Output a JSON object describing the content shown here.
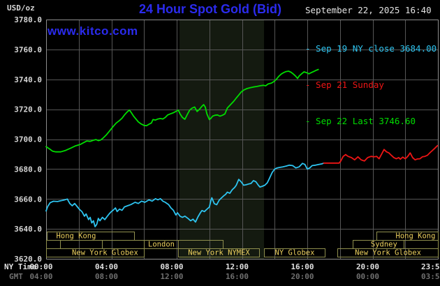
{
  "header": {
    "unit_label": "USD/oz",
    "title": "24 Hour Spot Gold (Bid)",
    "datetime": "September 22, 2025 16:40",
    "watermark": "www.kitco.com",
    "colors": {
      "accent_blue": "#2b2bee"
    }
  },
  "legend": [
    {
      "label": "- Sep 19 NY close 3684.00",
      "color": "#2ec4f0"
    },
    {
      "label": "- Sep 21 Sunday",
      "color": "#ee1515"
    },
    {
      "label": "- Sep 22 Last 3746.60",
      "color": "#00dd00"
    }
  ],
  "axes": {
    "ny_time_label": "NY Time",
    "gmt_label": "GMT",
    "x_min_hour": 0,
    "x_max_hour": 24,
    "x_tick_hours": [
      0,
      4,
      8,
      12,
      16,
      20,
      23.983
    ],
    "ny_time_ticks": [
      "00:00",
      "04:00",
      "08:00",
      "12:00",
      "16:00",
      "20:00",
      "23:59"
    ],
    "gmt_ticks": [
      "04:00",
      "08:00",
      "12:00",
      "16:00",
      "20:00",
      "00:00",
      "03:59"
    ],
    "y_min": 3620,
    "y_max": 3780,
    "y_tick_step": 20,
    "y_ticks": [
      3780,
      3760,
      3740,
      3720,
      3700,
      3680,
      3660,
      3640,
      3620
    ]
  },
  "sessions_style": {
    "border": "#8f8f4e",
    "text": "#ecd05e"
  },
  "sessions": [
    {
      "row": 0,
      "from_hour": 0.05,
      "to_hour": 5.4,
      "label": "Hong Kong",
      "label_hour": 1.84
    },
    {
      "row": 0,
      "from_hour": 20.24,
      "to_hour": 24,
      "label": "Hong Kong",
      "label_hour": 22.63
    },
    {
      "row": 1,
      "from_hour": 0,
      "to_hour": 0.86,
      "label": ""
    },
    {
      "row": 1,
      "from_hour": 0.86,
      "to_hour": 3.42,
      "label": ""
    },
    {
      "row": 1,
      "from_hour": 3.42,
      "to_hour": 5.99,
      "label": ""
    },
    {
      "row": 1,
      "from_hour": 5.99,
      "to_hour": 8.08,
      "label": "London"
    },
    {
      "row": 1,
      "from_hour": 8.08,
      "to_hour": 10.82,
      "label": ""
    },
    {
      "row": 1,
      "from_hour": 18.78,
      "to_hour": 21.9,
      "label": "Sydney",
      "label_hour": 20.7
    },
    {
      "row": 1,
      "from_hour": 21.9,
      "to_hour": 24,
      "label": ""
    },
    {
      "row": 2,
      "from_hour": 0,
      "to_hour": 5.99,
      "label": "New York Globex",
      "label_hour": 3.61
    },
    {
      "row": 2,
      "from_hour": 8.08,
      "to_hour": 13.05,
      "label": "New York NYMEX"
    },
    {
      "row": 2,
      "from_hour": 13.35,
      "to_hour": 17.07,
      "label": "NY Globex"
    },
    {
      "row": 2,
      "from_hour": 17.84,
      "to_hour": 24,
      "label": "New York Globex"
    }
  ],
  "chart_data": {
    "type": "line",
    "title": "24 Hour Spot Gold (Bid)",
    "x_axis": {
      "unit": "time of day",
      "rows": [
        "NY Time",
        "GMT"
      ],
      "range_hours": [
        0,
        24
      ]
    },
    "y_axis": {
      "unit": "USD/oz",
      "min": 3620,
      "max": 3780,
      "tick_step": 20
    },
    "grid": {
      "x_step_hours": 2,
      "y_step": 20
    },
    "legend_position": "top-right",
    "highlight_band": {
      "from_hour": 8.17,
      "to_hour": 13.35,
      "color": "#141a10"
    },
    "series": [
      {
        "key": "sep19",
        "name": "Sep 19 NY close",
        "close": 3684.0,
        "color": "#2ec4f0",
        "points": [
          [
            0,
            3652
          ],
          [
            0.1,
            3655
          ],
          [
            0.25,
            3657.5
          ],
          [
            0.45,
            3658.5
          ],
          [
            0.7,
            3658.3
          ],
          [
            0.9,
            3658.8
          ],
          [
            1.1,
            3659.3
          ],
          [
            1.3,
            3660
          ],
          [
            1.45,
            3657
          ],
          [
            1.6,
            3655.5
          ],
          [
            1.75,
            3657
          ],
          [
            1.9,
            3655
          ],
          [
            2.05,
            3653
          ],
          [
            2.2,
            3651.5
          ],
          [
            2.35,
            3648.5
          ],
          [
            2.45,
            3650
          ],
          [
            2.6,
            3646.2
          ],
          [
            2.7,
            3647.7
          ],
          [
            2.8,
            3644
          ],
          [
            2.9,
            3645.4
          ],
          [
            3,
            3641.5
          ],
          [
            3.1,
            3643
          ],
          [
            3.2,
            3647
          ],
          [
            3.3,
            3645.4
          ],
          [
            3.45,
            3647.7
          ],
          [
            3.6,
            3646.2
          ],
          [
            3.75,
            3648.5
          ],
          [
            3.9,
            3650.5
          ],
          [
            4,
            3651.6
          ],
          [
            4.1,
            3652.4
          ],
          [
            4.25,
            3654
          ],
          [
            4.35,
            3651.6
          ],
          [
            4.5,
            3653.2
          ],
          [
            4.65,
            3652.4
          ],
          [
            4.8,
            3654.7
          ],
          [
            5,
            3655.5
          ],
          [
            5.2,
            3656.3
          ],
          [
            5.45,
            3657.8
          ],
          [
            5.65,
            3657
          ],
          [
            5.85,
            3658.6
          ],
          [
            6.05,
            3657.8
          ],
          [
            6.3,
            3659.4
          ],
          [
            6.5,
            3658.6
          ],
          [
            6.7,
            3660.2
          ],
          [
            6.85,
            3659.4
          ],
          [
            7,
            3660.2
          ],
          [
            7.15,
            3658.6
          ],
          [
            7.3,
            3657.8
          ],
          [
            7.5,
            3656.3
          ],
          [
            7.65,
            3654
          ],
          [
            7.8,
            3652.4
          ],
          [
            7.95,
            3649.3
          ],
          [
            8.05,
            3650.8
          ],
          [
            8.2,
            3648.5
          ],
          [
            8.35,
            3647.7
          ],
          [
            8.5,
            3648.5
          ],
          [
            8.7,
            3646.9
          ],
          [
            8.85,
            3645.4
          ],
          [
            9,
            3646.5
          ],
          [
            9.15,
            3644.6
          ],
          [
            9.3,
            3648
          ],
          [
            9.45,
            3650.8
          ],
          [
            9.55,
            3652.3
          ],
          [
            9.7,
            3651.6
          ],
          [
            9.85,
            3653.1
          ],
          [
            10,
            3654.6
          ],
          [
            10.1,
            3659.2
          ],
          [
            10.15,
            3660.8
          ],
          [
            10.3,
            3656.9
          ],
          [
            10.45,
            3656.2
          ],
          [
            10.6,
            3659.2
          ],
          [
            10.75,
            3660.8
          ],
          [
            10.9,
            3662.3
          ],
          [
            11,
            3663.1
          ],
          [
            11.1,
            3664.6
          ],
          [
            11.25,
            3663.8
          ],
          [
            11.4,
            3666.2
          ],
          [
            11.55,
            3667.7
          ],
          [
            11.65,
            3669.2
          ],
          [
            11.8,
            3673.1
          ],
          [
            11.95,
            3671.5
          ],
          [
            12.1,
            3669.2
          ],
          [
            12.25,
            3669.5
          ],
          [
            12.4,
            3670
          ],
          [
            12.55,
            3670.4
          ],
          [
            12.7,
            3672.3
          ],
          [
            12.85,
            3671.5
          ],
          [
            13,
            3669.2
          ],
          [
            13.1,
            3668
          ],
          [
            13.25,
            3668.5
          ],
          [
            13.4,
            3669.2
          ],
          [
            13.55,
            3670.8
          ],
          [
            13.65,
            3673.1
          ],
          [
            13.75,
            3675.4
          ],
          [
            13.85,
            3677.7
          ],
          [
            14,
            3680
          ],
          [
            14.15,
            3680.8
          ],
          [
            14.3,
            3681.1
          ],
          [
            14.5,
            3681.5
          ],
          [
            14.7,
            3682
          ],
          [
            14.9,
            3682.6
          ],
          [
            15.1,
            3682.3
          ],
          [
            15.3,
            3680.8
          ],
          [
            15.5,
            3681.5
          ],
          [
            15.7,
            3683.8
          ],
          [
            15.85,
            3683.1
          ],
          [
            16,
            3680
          ],
          [
            16.15,
            3680.8
          ],
          [
            16.3,
            3682.3
          ],
          [
            16.5,
            3682.6
          ],
          [
            16.7,
            3683.1
          ],
          [
            16.9,
            3683.5
          ],
          [
            17,
            3684
          ]
        ]
      },
      {
        "key": "sep21",
        "name": "Sep 21 Sunday",
        "color": "#ee1515",
        "points": [
          [
            17,
            3684
          ],
          [
            17.95,
            3684
          ],
          [
            18.05,
            3685.4
          ],
          [
            18.2,
            3688.5
          ],
          [
            18.35,
            3689.7
          ],
          [
            18.5,
            3688.5
          ],
          [
            18.7,
            3687.7
          ],
          [
            18.9,
            3686.2
          ],
          [
            19.1,
            3688.2
          ],
          [
            19.3,
            3686.2
          ],
          [
            19.5,
            3685.4
          ],
          [
            19.7,
            3687.7
          ],
          [
            19.9,
            3688.5
          ],
          [
            20.1,
            3688.2
          ],
          [
            20.25,
            3688.5
          ],
          [
            20.4,
            3686.9
          ],
          [
            20.55,
            3690
          ],
          [
            20.7,
            3693.1
          ],
          [
            20.85,
            3691.5
          ],
          [
            21,
            3690.8
          ],
          [
            21.15,
            3689.2
          ],
          [
            21.3,
            3687.7
          ],
          [
            21.45,
            3686.9
          ],
          [
            21.6,
            3687.7
          ],
          [
            21.7,
            3686.6
          ],
          [
            21.85,
            3688
          ],
          [
            22,
            3686.9
          ],
          [
            22.15,
            3688.5
          ],
          [
            22.3,
            3690.8
          ],
          [
            22.45,
            3687.7
          ],
          [
            22.6,
            3686.2
          ],
          [
            22.75,
            3686.8
          ],
          [
            22.9,
            3686.9
          ],
          [
            23.05,
            3688.2
          ],
          [
            23.2,
            3688.5
          ],
          [
            23.35,
            3689.2
          ],
          [
            23.5,
            3690.8
          ],
          [
            23.65,
            3692.3
          ],
          [
            23.8,
            3693.8
          ],
          [
            23.98,
            3695.7
          ]
        ]
      },
      {
        "key": "sep22",
        "name": "Sep 22 Last",
        "last": 3746.6,
        "color": "#00dd00",
        "points": [
          [
            0,
            3695
          ],
          [
            0.2,
            3693.5
          ],
          [
            0.4,
            3692
          ],
          [
            0.6,
            3691.5
          ],
          [
            0.9,
            3691.5
          ],
          [
            1.2,
            3692.5
          ],
          [
            1.5,
            3694
          ],
          [
            1.8,
            3695.5
          ],
          [
            2.1,
            3696.5
          ],
          [
            2.3,
            3697.7
          ],
          [
            2.5,
            3698.8
          ],
          [
            2.7,
            3698.5
          ],
          [
            2.9,
            3699.3
          ],
          [
            3.05,
            3699.7
          ],
          [
            3.2,
            3699
          ],
          [
            3.35,
            3699.5
          ],
          [
            3.5,
            3700.8
          ],
          [
            3.7,
            3703
          ],
          [
            3.85,
            3705
          ],
          [
            4,
            3707
          ],
          [
            4.15,
            3709
          ],
          [
            4.3,
            3710.8
          ],
          [
            4.5,
            3712.5
          ],
          [
            4.65,
            3714
          ],
          [
            4.8,
            3716.2
          ],
          [
            4.95,
            3718
          ],
          [
            5.1,
            3719.5
          ],
          [
            5.2,
            3718
          ],
          [
            5.35,
            3715.5
          ],
          [
            5.5,
            3713.5
          ],
          [
            5.65,
            3711.5
          ],
          [
            5.8,
            3710.3
          ],
          [
            6,
            3709.2
          ],
          [
            6.15,
            3709
          ],
          [
            6.3,
            3710
          ],
          [
            6.45,
            3710.8
          ],
          [
            6.55,
            3713.1
          ],
          [
            6.7,
            3712.8
          ],
          [
            6.85,
            3713.5
          ],
          [
            7,
            3713.8
          ],
          [
            7.15,
            3713.5
          ],
          [
            7.3,
            3714.5
          ],
          [
            7.45,
            3716.2
          ],
          [
            7.6,
            3716.9
          ],
          [
            7.8,
            3717.7
          ],
          [
            8,
            3718.8
          ],
          [
            8.1,
            3719.5
          ],
          [
            8.2,
            3717
          ],
          [
            8.35,
            3714.5
          ],
          [
            8.5,
            3713.3
          ],
          [
            8.65,
            3716.5
          ],
          [
            8.8,
            3719.5
          ],
          [
            8.95,
            3720.8
          ],
          [
            9.1,
            3721.5
          ],
          [
            9.25,
            3718.5
          ],
          [
            9.4,
            3720
          ],
          [
            9.55,
            3722
          ],
          [
            9.65,
            3723.1
          ],
          [
            9.75,
            3721.5
          ],
          [
            9.85,
            3717
          ],
          [
            10,
            3713.1
          ],
          [
            10.1,
            3714
          ],
          [
            10.2,
            3715.4
          ],
          [
            10.35,
            3716
          ],
          [
            10.5,
            3716.2
          ],
          [
            10.65,
            3715.4
          ],
          [
            10.8,
            3716
          ],
          [
            10.95,
            3716.9
          ],
          [
            11.1,
            3720.8
          ],
          [
            11.3,
            3723.1
          ],
          [
            11.5,
            3725.4
          ],
          [
            11.65,
            3727.5
          ],
          [
            11.8,
            3729.5
          ],
          [
            11.95,
            3731.5
          ],
          [
            12.1,
            3732.8
          ],
          [
            12.3,
            3733.8
          ],
          [
            12.5,
            3734.4
          ],
          [
            12.7,
            3734.9
          ],
          [
            12.9,
            3735.2
          ],
          [
            13.1,
            3735.7
          ],
          [
            13.3,
            3736
          ],
          [
            13.45,
            3735.7
          ],
          [
            13.6,
            3736.9
          ],
          [
            13.8,
            3737.5
          ],
          [
            13.95,
            3738.5
          ],
          [
            14.1,
            3740
          ],
          [
            14.25,
            3742
          ],
          [
            14.4,
            3743.5
          ],
          [
            14.55,
            3744.5
          ],
          [
            14.7,
            3745.2
          ],
          [
            14.85,
            3745.5
          ],
          [
            15,
            3744.8
          ],
          [
            15.15,
            3743.5
          ],
          [
            15.3,
            3742
          ],
          [
            15.4,
            3740.6
          ],
          [
            15.5,
            3742.2
          ],
          [
            15.65,
            3743.7
          ],
          [
            15.8,
            3745
          ],
          [
            15.95,
            3744.5
          ],
          [
            16.1,
            3743.7
          ],
          [
            16.25,
            3744.5
          ],
          [
            16.4,
            3745.3
          ],
          [
            16.55,
            3746.1
          ],
          [
            16.67,
            3746.6
          ]
        ]
      }
    ]
  }
}
